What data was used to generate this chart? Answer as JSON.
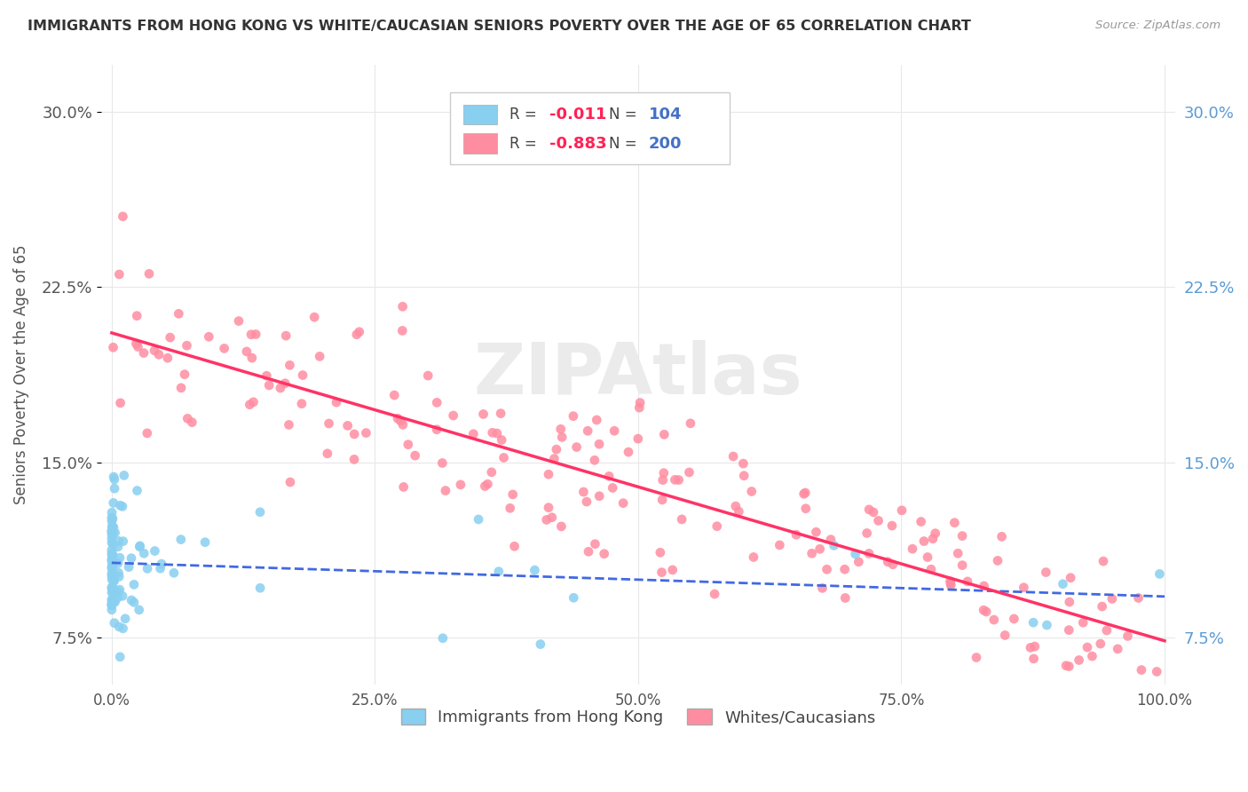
{
  "title": "IMMIGRANTS FROM HONG KONG VS WHITE/CAUCASIAN SENIORS POVERTY OVER THE AGE OF 65 CORRELATION CHART",
  "source": "Source: ZipAtlas.com",
  "ylabel": "Seniors Poverty Over the Age of 65",
  "legend_blue_R": "-0.011",
  "legend_blue_N": "104",
  "legend_pink_R": "-0.883",
  "legend_pink_N": "200",
  "legend_label_blue": "Immigrants from Hong Kong",
  "legend_label_pink": "Whites/Caucasians",
  "yticks": [
    0.075,
    0.15,
    0.225,
    0.3
  ],
  "ytick_labels": [
    "7.5%",
    "15.0%",
    "22.5%",
    "30.0%"
  ],
  "blue_color": "#89CFF0",
  "pink_color": "#FF8DA1",
  "blue_line_color": "#4169E1",
  "pink_line_color": "#FF3366",
  "watermark_text": "ZIPAtlas",
  "background_color": "#FFFFFF",
  "grid_color": "#E8E8E8",
  "blue_seed": 42,
  "pink_seed": 7
}
